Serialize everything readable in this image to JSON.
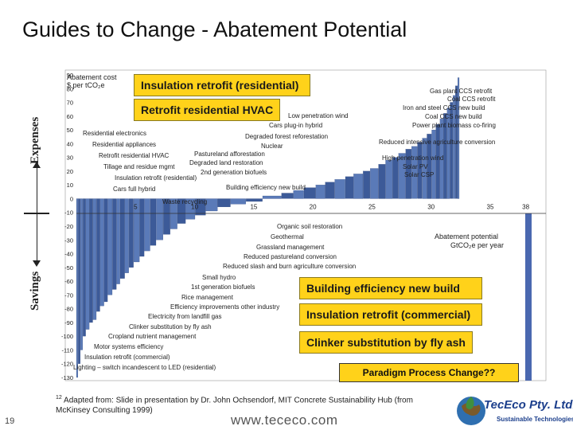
{
  "slide": {
    "title": "Guides to Change - Abatement Potential",
    "page_number": "19",
    "url": "www.tececo.com",
    "footnote_mark": "12",
    "footnote_text": "Adapted from:  Slide in presentation by Dr. John Ochsendorf, MIT Concrete Sustainability Hub (from McKinsey Consulting 1999)",
    "side_expenses": "Expenses",
    "side_savings": "Savings",
    "paradigm": "Paradigm Process Change??",
    "logo_text": "TecEco Pty. Ltd.",
    "logo_sub": "Sustainable Technologies"
  },
  "callouts": [
    "Insulation retrofit (residential)",
    "Retrofit residential HVAC",
    "Building efficiency new build",
    "Insulation retrofit (commercial)",
    "Clinker substitution by fly ash"
  ],
  "colors": {
    "bar": "#5a7ab8",
    "bar_dark": "#3c5a98",
    "accent": "#ffd21a",
    "highlight_red": "#c0392b",
    "edge_bar": "#4a68b0"
  },
  "chart_data": {
    "type": "bar",
    "ylabel_line1": "Abatement cost",
    "ylabel_line2": "$ per tCO₂e",
    "xlabel_line1": "Abatement potential",
    "xlabel_line2": "GtCO₂e per year",
    "ylim": [
      -130,
      90
    ],
    "xlim": [
      0,
      38.5
    ],
    "y_ticks": [
      90,
      80,
      70,
      60,
      50,
      40,
      30,
      20,
      10,
      0,
      -10,
      -20,
      -30,
      -40,
      -50,
      -60,
      -70,
      -80,
      -90,
      -100,
      -110,
      -120,
      -130
    ],
    "x_ticks": [
      5,
      10,
      15,
      20,
      25,
      30,
      35,
      38
    ],
    "bars": [
      {
        "w": 0.15,
        "v": -130
      },
      {
        "w": 0.2,
        "v": -120
      },
      {
        "w": 0.2,
        "v": -110
      },
      {
        "w": 0.25,
        "v": -100
      },
      {
        "w": 0.3,
        "v": -95
      },
      {
        "w": 0.3,
        "v": -90
      },
      {
        "w": 0.3,
        "v": -88
      },
      {
        "w": 0.3,
        "v": -82
      },
      {
        "w": 0.35,
        "v": -78
      },
      {
        "w": 0.3,
        "v": -75
      },
      {
        "w": 0.4,
        "v": -70
      },
      {
        "w": 0.35,
        "v": -66
      },
      {
        "w": 0.3,
        "v": -62
      },
      {
        "w": 0.4,
        "v": -58
      },
      {
        "w": 0.35,
        "v": -54
      },
      {
        "w": 0.4,
        "v": -50
      },
      {
        "w": 0.5,
        "v": -46
      },
      {
        "w": 0.4,
        "v": -42
      },
      {
        "w": 0.5,
        "v": -38
      },
      {
        "w": 0.5,
        "v": -34
      },
      {
        "w": 0.6,
        "v": -30
      },
      {
        "w": 0.6,
        "v": -26
      },
      {
        "w": 0.6,
        "v": -22
      },
      {
        "w": 0.7,
        "v": -18
      },
      {
        "w": 0.8,
        "v": -15
      },
      {
        "w": 0.9,
        "v": -12
      },
      {
        "w": 1.0,
        "v": -9
      },
      {
        "w": 1.1,
        "v": -6
      },
      {
        "w": 1.3,
        "v": -4
      },
      {
        "w": 1.4,
        "v": -2
      },
      {
        "w": 1.6,
        "v": 2
      },
      {
        "w": 1.0,
        "v": 4
      },
      {
        "w": 0.9,
        "v": 6
      },
      {
        "w": 1.0,
        "v": 8
      },
      {
        "w": 0.8,
        "v": 10
      },
      {
        "w": 0.8,
        "v": 12
      },
      {
        "w": 0.9,
        "v": 14
      },
      {
        "w": 0.7,
        "v": 16
      },
      {
        "w": 0.8,
        "v": 18
      },
      {
        "w": 0.6,
        "v": 20
      },
      {
        "w": 0.7,
        "v": 22
      },
      {
        "w": 0.6,
        "v": 25
      },
      {
        "w": 0.6,
        "v": 28
      },
      {
        "w": 0.5,
        "v": 30
      },
      {
        "w": 0.6,
        "v": 33
      },
      {
        "w": 0.5,
        "v": 36
      },
      {
        "w": 0.5,
        "v": 38
      },
      {
        "w": 0.4,
        "v": 41
      },
      {
        "w": 0.4,
        "v": 44
      },
      {
        "w": 0.4,
        "v": 47
      },
      {
        "w": 0.35,
        "v": 50
      },
      {
        "w": 0.35,
        "v": 54
      },
      {
        "w": 0.3,
        "v": 58
      },
      {
        "w": 0.3,
        "v": 62
      },
      {
        "w": 0.25,
        "v": 66
      },
      {
        "w": 0.25,
        "v": 70
      },
      {
        "w": 0.2,
        "v": 75
      },
      {
        "w": 0.2,
        "v": 82
      },
      {
        "w": 0.15,
        "v": 88
      }
    ],
    "annotations": [
      "Residential electronics",
      "Residential appliances",
      "Retrofit residential HVAC",
      "Tillage and residue mgmt",
      "Insulation retrofit (residential)",
      "Cars full hybrid",
      "Waste recycling",
      "Pastureland afforestation",
      "Degraded land restoration",
      "2nd generation biofuels",
      "Building efficiency new build",
      "Nuclear",
      "Degraded forest reforestation",
      "Cars plug-in hybrid",
      "Low penetration wind",
      "Gas plant CCS retrofit",
      "Coal CCS retrofit",
      "Iron and steel CCS new build",
      "Coal CCS new build",
      "Power plant biomass co-firing",
      "Reduced intensive agriculture conversion",
      "High penetration wind",
      "Solar PV",
      "Solar CSP",
      "Organic soil restoration",
      "Geothermal",
      "Grassland management",
      "Reduced pastureland conversion",
      "Reduced slash and burn agriculture conversion",
      "Small hydro",
      "1st generation biofuels",
      "Rice management",
      "Efficiency improvements other industry",
      "Electricity from landfill gas",
      "Clinker substitution by fly ash",
      "Cropland nutrient management",
      "Motor systems efficiency",
      "Insulation retrofit (commercial)",
      "Lighting – switch incandescent to LED (residential)"
    ]
  }
}
